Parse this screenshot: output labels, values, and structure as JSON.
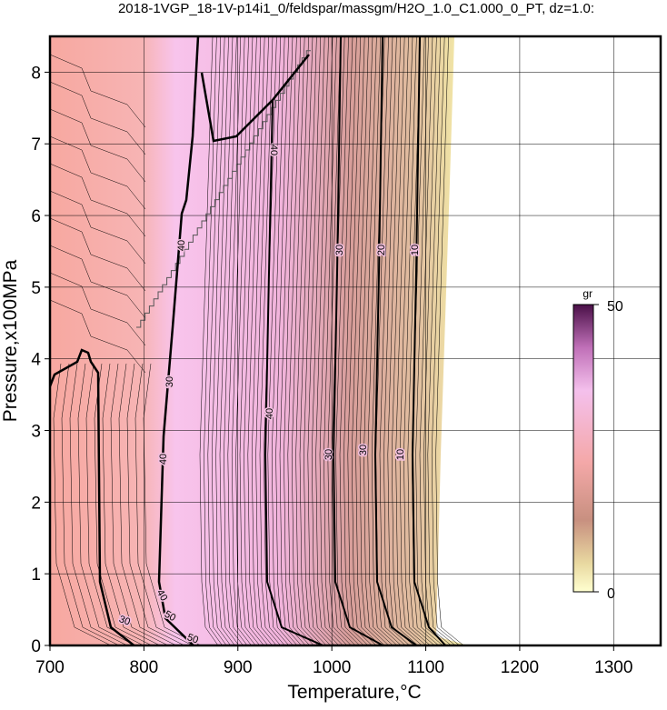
{
  "chart_data": {
    "type": "contour",
    "title": "2018-1VGP_18-1V-p14i1_0/feldspar/massgm/H2O_1.0_C1.000_0_PT, dz=1.0:",
    "x_label": "Temperature,°C",
    "y_label": "Pressure,x100MPa",
    "xlim": [
      700,
      1350
    ],
    "ylim": [
      0,
      8.5
    ],
    "xticks": [
      700,
      800,
      900,
      1000,
      1100,
      1200,
      1300
    ],
    "yticks": [
      0,
      1,
      2,
      3,
      4,
      5,
      6,
      7,
      8
    ],
    "grid": true,
    "colorbar": {
      "label": "gr",
      "lim": [
        0,
        50
      ],
      "ticks": [
        0,
        50
      ]
    },
    "contour_levels": [
      40,
      30,
      20,
      10
    ],
    "contour_labels": [
      40,
      30,
      20,
      10,
      40,
      30,
      40,
      30,
      30,
      10,
      40,
      30,
      50,
      50,
      40
    ]
  }
}
